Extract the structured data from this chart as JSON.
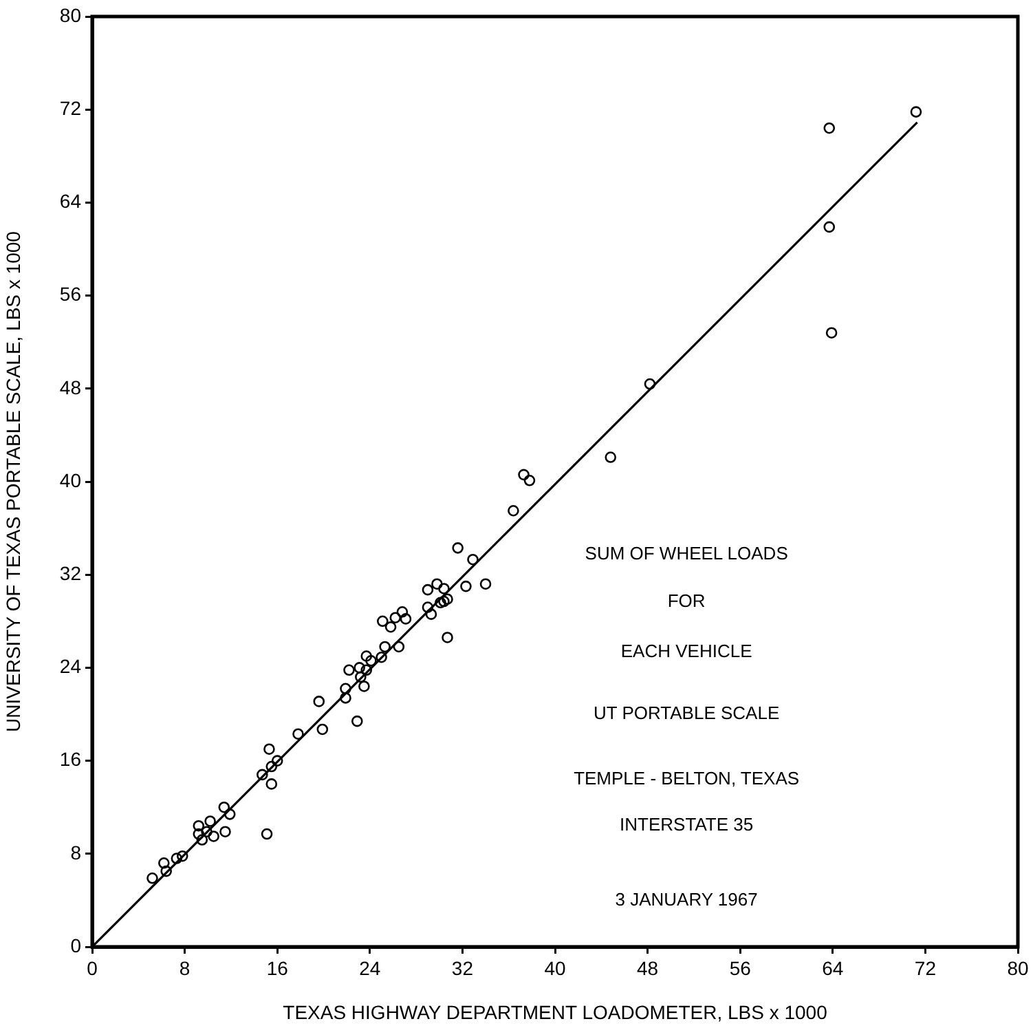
{
  "chart_data": {
    "type": "scatter",
    "xlabel": "TEXAS HIGHWAY DEPARTMENT LOADOMETER, LBS x 1000",
    "ylabel": "UNIVERSITY OF TEXAS PORTABLE SCALE, LBS x 1000",
    "xlim": [
      0,
      80
    ],
    "ylim": [
      0,
      80
    ],
    "xticks": [
      0,
      8,
      16,
      24,
      32,
      40,
      48,
      56,
      64,
      72,
      80
    ],
    "yticks": [
      0,
      8,
      16,
      24,
      32,
      40,
      48,
      56,
      64,
      72,
      80
    ],
    "grid": false,
    "legend": false,
    "marker": "circle",
    "series": [
      {
        "type": "scatter",
        "color": "#000000",
        "x": [
          5.2,
          6.2,
          6.4,
          7.3,
          7.8,
          9.2,
          9.2,
          9.5,
          9.9,
          10.2,
          10.5,
          11.4,
          11.5,
          11.9,
          14.7,
          15.3,
          15.5,
          15.1,
          15.5,
          16.0,
          17.8,
          19.6,
          19.9,
          22.9,
          21.9,
          21.9,
          23.5,
          22.2,
          23.1,
          23.7,
          24.1,
          23.2,
          23.7,
          25.0,
          25.3,
          26.5,
          25.1,
          25.8,
          26.2,
          26.8,
          27.1,
          29.0,
          29.0,
          29.3,
          29.8,
          30.4,
          30.1,
          30.4,
          30.7,
          30.7,
          31.6,
          32.3,
          32.9,
          34.0,
          36.4,
          37.3,
          37.8,
          44.8,
          48.2,
          63.7,
          63.7,
          63.9,
          71.2
        ],
        "values": [
          5.9,
          7.2,
          6.5,
          7.6,
          7.8,
          10.4,
          9.7,
          9.2,
          9.9,
          10.8,
          9.5,
          12.0,
          9.9,
          11.4,
          14.8,
          17.0,
          14.0,
          9.7,
          15.5,
          16.0,
          18.3,
          21.1,
          18.7,
          19.4,
          22.2,
          21.4,
          22.4,
          23.8,
          24.0,
          25.0,
          24.6,
          23.2,
          23.8,
          24.9,
          25.8,
          25.8,
          28.0,
          27.5,
          28.3,
          28.8,
          28.2,
          30.7,
          29.2,
          28.6,
          31.2,
          30.8,
          29.6,
          29.7,
          29.9,
          26.6,
          34.3,
          31.0,
          33.3,
          31.2,
          37.5,
          40.6,
          40.1,
          42.1,
          48.4,
          70.4,
          61.9,
          52.8,
          71.8
        ]
      },
      {
        "type": "line",
        "color": "#000000",
        "x": [
          0,
          71.3
        ],
        "values": [
          0,
          70.9
        ],
        "marker": "none",
        "line_style": "solid"
      }
    ],
    "annotations": [
      "SUM OF WHEEL LOADS",
      "FOR",
      "EACH VEHICLE",
      "UT PORTABLE SCALE",
      "TEMPLE - BELTON, TEXAS",
      "INTERSTATE 35",
      "3 JANUARY 1967"
    ]
  }
}
